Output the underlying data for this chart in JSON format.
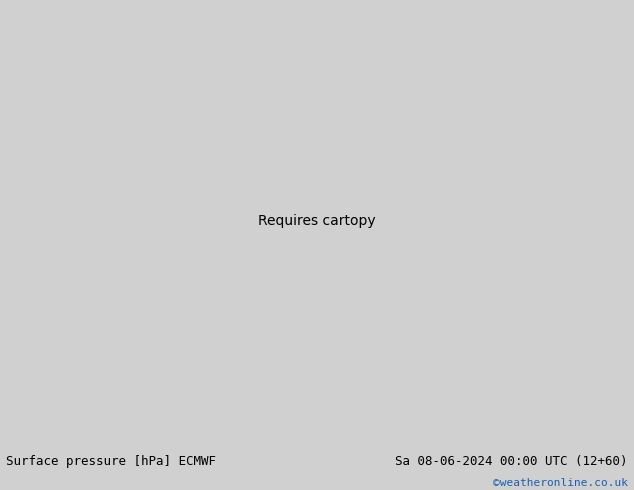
{
  "title_left": "Surface pressure [hPa] ECMWF",
  "title_right": "Sa 08-06-2024 00:00 UTC (12+60)",
  "watermark": "©weatheronline.co.uk",
  "fig_width": 6.34,
  "fig_height": 4.9,
  "dpi": 100,
  "bottom_bar_color": "#e0e0e0",
  "label_fontsize": 9,
  "watermark_color": "#1a5fb4",
  "watermark_fontsize": 8,
  "map_bg": "#c8c8c8",
  "ocean_color": "#c8c8c8",
  "land_color_west": "#d8d8d8",
  "land_green": "#90c878",
  "land_light_green": "#b8e0a0"
}
